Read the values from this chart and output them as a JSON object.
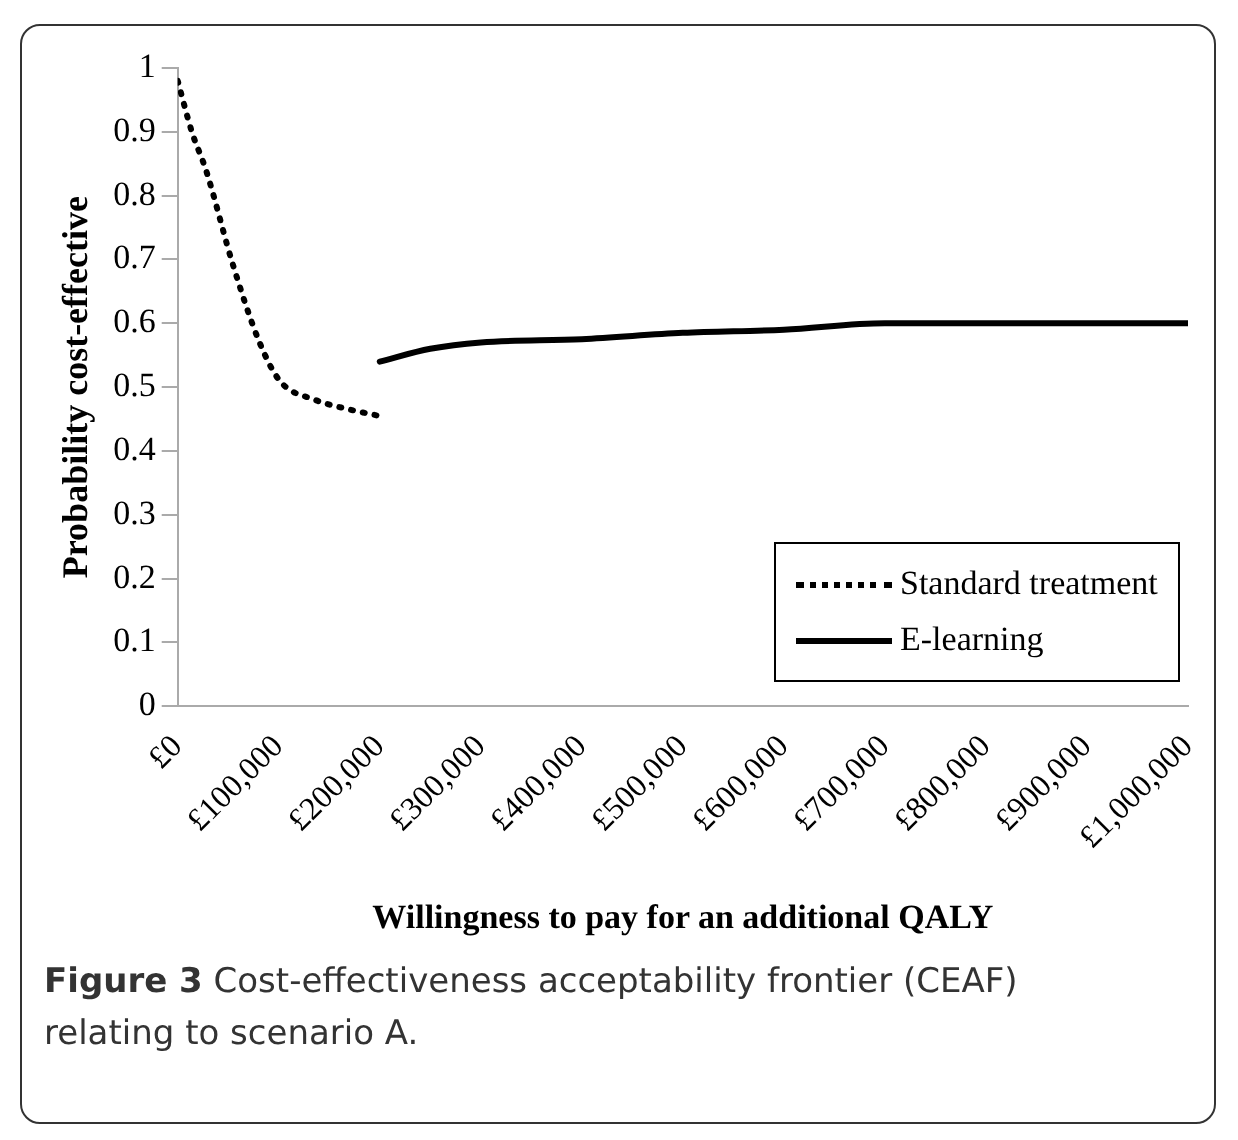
{
  "chart_data": {
    "type": "line",
    "xlabel": "Willingness to pay for an additional QALY",
    "ylabel": "Probability cost-effective",
    "annotations": [
      "Figure 3",
      "Cost-effectiveness acceptability frontier (CEAF) relating to scenario A."
    ],
    "xlim": [
      0,
      1000000
    ],
    "xticks": [
      {
        "value": 0,
        "label": "£0"
      },
      {
        "value": 100000,
        "label": "£100,000"
      },
      {
        "value": 200000,
        "label": "£200,000"
      },
      {
        "value": 300000,
        "label": "£300,000"
      },
      {
        "value": 400000,
        "label": "£400,000"
      },
      {
        "value": 500000,
        "label": "£500,000"
      },
      {
        "value": 600000,
        "label": "£600,000"
      },
      {
        "value": 700000,
        "label": "£700,000"
      },
      {
        "value": 800000,
        "label": "£800,000"
      },
      {
        "value": 900000,
        "label": "£900,000"
      },
      {
        "value": 1000000,
        "label": "£1,000,000"
      }
    ],
    "ylim": [
      0,
      1
    ],
    "yticks": [
      0,
      0.1,
      0.2,
      0.3,
      0.4,
      0.5,
      0.6,
      0.7,
      0.8,
      0.9,
      1
    ],
    "grid": false,
    "legend": "bottom right",
    "marker": "none",
    "series": [
      {
        "name": "Standard treatment",
        "color": "#000000",
        "line_style": "dotted",
        "x": [
          0,
          14000,
          28000,
          55000,
          81000,
          101000,
          136000,
          170000,
          199000
        ],
        "values": [
          0.98,
          0.9,
          0.84,
          0.69,
          0.57,
          0.51,
          0.48,
          0.465,
          0.455
        ]
      },
      {
        "name": "E-learning",
        "color": "#000000",
        "line_style": "solid",
        "x": [
          200000,
          250000,
          300000,
          400000,
          500000,
          600000,
          700000,
          800000,
          900000,
          1000000
        ],
        "values": [
          0.54,
          0.56,
          0.57,
          0.575,
          0.585,
          0.59,
          0.6,
          0.6,
          0.6,
          0.6
        ]
      }
    ]
  }
}
